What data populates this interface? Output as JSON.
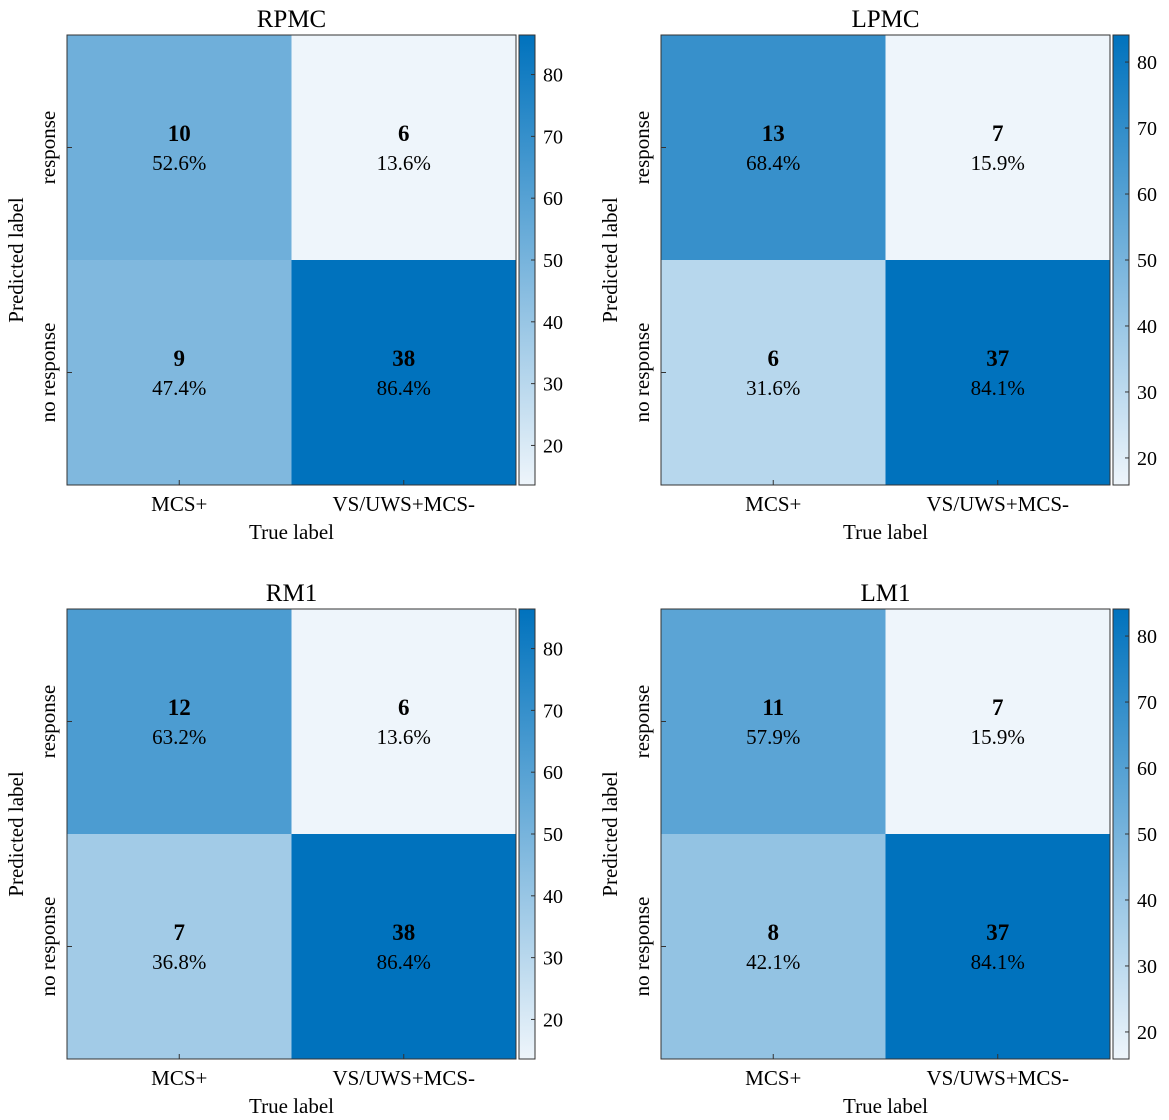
{
  "figure": {
    "colormap": {
      "low": "#eef5fb",
      "high": "#0072bd"
    },
    "row_labels": [
      "response",
      "no response"
    ],
    "col_labels": [
      "MCS+",
      "VS/UWS+MCS-"
    ],
    "xlabel": "True label",
    "ylabel": "Predicted label"
  },
  "chart_data": [
    {
      "type": "heatmap",
      "title": "RPMC",
      "rows": [
        "response",
        "no response"
      ],
      "columns": [
        "MCS+",
        "VS/UWS+MCS-"
      ],
      "counts": [
        [
          10,
          6
        ],
        [
          9,
          38
        ]
      ],
      "percent_labels": [
        [
          "52.6%",
          "13.6%"
        ],
        [
          "47.4%",
          "86.4%"
        ]
      ],
      "percents": [
        [
          52.6,
          13.6
        ],
        [
          47.4,
          86.4
        ]
      ],
      "xlabel": "True label",
      "ylabel": "Predicted label",
      "colorbar": {
        "range": [
          13.6,
          86.4
        ],
        "ticks": [
          20,
          30,
          40,
          50,
          60,
          70,
          80
        ]
      }
    },
    {
      "type": "heatmap",
      "title": "LPMC",
      "rows": [
        "response",
        "no response"
      ],
      "columns": [
        "MCS+",
        "VS/UWS+MCS-"
      ],
      "counts": [
        [
          13,
          7
        ],
        [
          6,
          37
        ]
      ],
      "percent_labels": [
        [
          "68.4%",
          "15.9%"
        ],
        [
          "31.6%",
          "84.1%"
        ]
      ],
      "percents": [
        [
          68.4,
          15.9
        ],
        [
          31.6,
          84.1
        ]
      ],
      "xlabel": "True label",
      "ylabel": "Predicted label",
      "colorbar": {
        "range": [
          15.9,
          84.1
        ],
        "ticks": [
          20,
          30,
          40,
          50,
          60,
          70,
          80
        ]
      }
    },
    {
      "type": "heatmap",
      "title": "RM1",
      "rows": [
        "response",
        "no response"
      ],
      "columns": [
        "MCS+",
        "VS/UWS+MCS-"
      ],
      "counts": [
        [
          12,
          6
        ],
        [
          7,
          38
        ]
      ],
      "percent_labels": [
        [
          "63.2%",
          "13.6%"
        ],
        [
          "36.8%",
          "86.4%"
        ]
      ],
      "percents": [
        [
          63.2,
          13.6
        ],
        [
          36.8,
          86.4
        ]
      ],
      "xlabel": "True label",
      "ylabel": "Predicted label",
      "colorbar": {
        "range": [
          13.6,
          86.4
        ],
        "ticks": [
          20,
          30,
          40,
          50,
          60,
          70,
          80
        ]
      }
    },
    {
      "type": "heatmap",
      "title": "LM1",
      "rows": [
        "response",
        "no response"
      ],
      "columns": [
        "MCS+",
        "VS/UWS+MCS-"
      ],
      "counts": [
        [
          11,
          7
        ],
        [
          8,
          37
        ]
      ],
      "percent_labels": [
        [
          "57.9%",
          "15.9%"
        ],
        [
          "42.1%",
          "84.1%"
        ]
      ],
      "percents": [
        [
          57.9,
          15.9
        ],
        [
          42.1,
          84.1
        ]
      ],
      "xlabel": "True label",
      "ylabel": "Predicted label",
      "colorbar": {
        "range": [
          15.9,
          84.1
        ],
        "ticks": [
          20,
          30,
          40,
          50,
          60,
          70,
          80
        ]
      }
    }
  ]
}
